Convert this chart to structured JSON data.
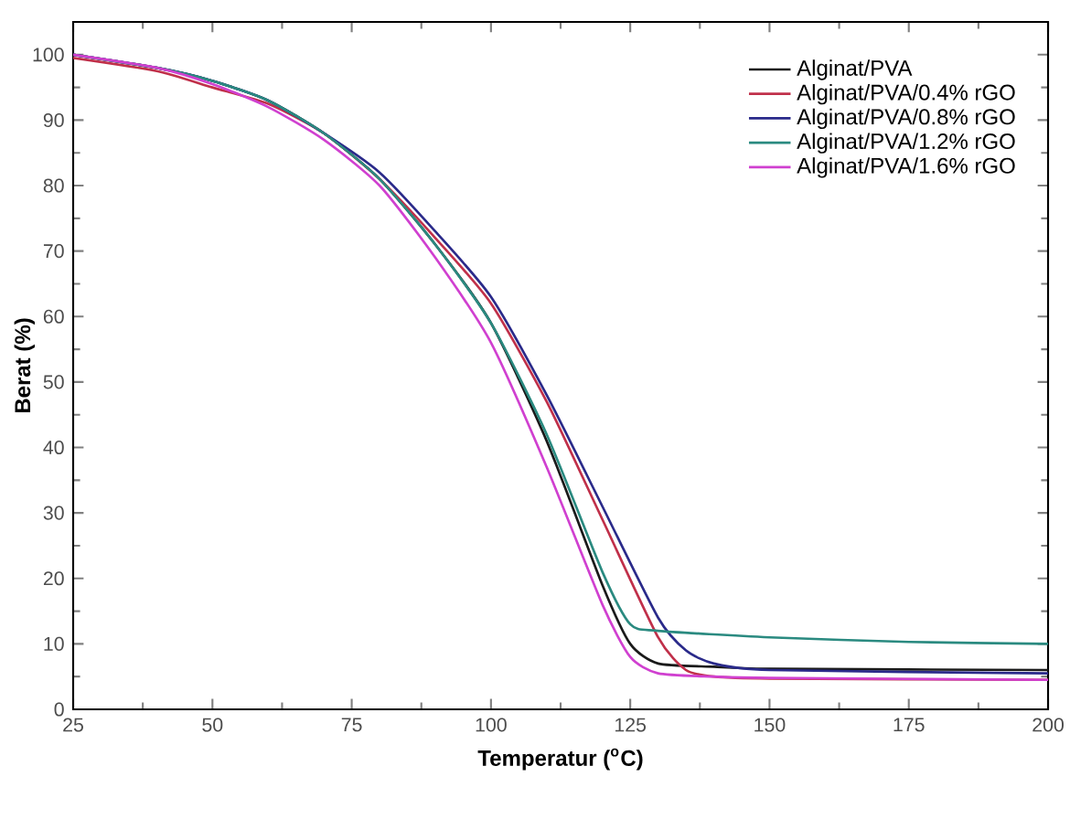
{
  "chart_data": {
    "type": "line",
    "xlabel": "Temperatur ($^{o}$C)",
    "ylabel": "Berat (%)",
    "xlim": [
      25,
      200
    ],
    "xticks": [
      25,
      50,
      75,
      100,
      125,
      150,
      175,
      200
    ],
    "ylim": [
      0,
      105
    ],
    "yticks": [
      0,
      10,
      20,
      30,
      40,
      50,
      60,
      70,
      80,
      90,
      100
    ],
    "legend": "top right",
    "grid": false,
    "marker": "none",
    "line_style": "solid",
    "series": [
      {
        "name": "Alginat/PVA",
        "color": "#1a1a1a",
        "x": [
          25,
          40,
          50,
          60,
          70,
          80,
          90,
          100,
          110,
          120,
          125,
          130,
          140,
          150,
          200
        ],
        "values": [
          100,
          98,
          96,
          93,
          88,
          81,
          71,
          59,
          41,
          19,
          10,
          7,
          6.5,
          6.2,
          6
        ]
      },
      {
        "name": "Alginat/PVA/0.4% rGO",
        "color": "#c0304a",
        "x": [
          25,
          40,
          50,
          60,
          70,
          80,
          90,
          100,
          110,
          120,
          130,
          135,
          140,
          150,
          200
        ],
        "values": [
          99.5,
          97.5,
          95,
          92.5,
          88,
          81,
          72,
          62,
          47,
          29,
          11,
          6,
          5,
          4.7,
          4.5
        ]
      },
      {
        "name": "Alginat/PVA/0.8% rGO",
        "color": "#2a2a8a",
        "x": [
          25,
          40,
          50,
          60,
          70,
          80,
          90,
          100,
          110,
          120,
          130,
          135,
          140,
          150,
          200
        ],
        "values": [
          100,
          98,
          96,
          93,
          88,
          82,
          73,
          63,
          48,
          31,
          14,
          9,
          7,
          6,
          5.5
        ]
      },
      {
        "name": "Alginat/PVA/1.2% rGO",
        "color": "#2a8a80",
        "x": [
          25,
          40,
          50,
          60,
          70,
          80,
          90,
          100,
          110,
          120,
          125,
          130,
          150,
          175,
          200
        ],
        "values": [
          100,
          98,
          96,
          93,
          88,
          81,
          71,
          59,
          42,
          21,
          13,
          12,
          11,
          10.3,
          10
        ]
      },
      {
        "name": "Alginat/PVA/1.6% rGO",
        "color": "#d040d0",
        "x": [
          25,
          40,
          50,
          60,
          70,
          80,
          90,
          100,
          110,
          120,
          125,
          130,
          140,
          150,
          200
        ],
        "values": [
          100,
          98,
          95.5,
          92,
          87,
          80,
          69,
          56,
          37,
          16,
          8,
          5.5,
          5,
          4.8,
          4.5
        ]
      }
    ]
  }
}
